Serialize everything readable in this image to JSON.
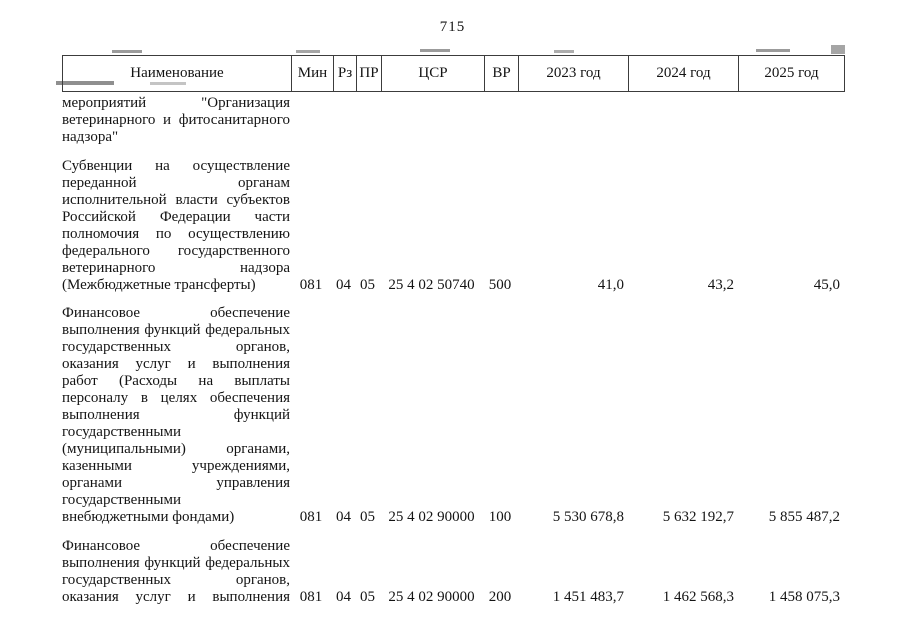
{
  "page": {
    "number": "715"
  },
  "table": {
    "columns": {
      "name": "Наименование",
      "min": "Мин",
      "rz": "Рз",
      "pr": "ПР",
      "csr": "ЦСР",
      "vr": "ВР",
      "y2023": "2023 год",
      "y2024": "2024 год",
      "y2025": "2025 год"
    },
    "rows": [
      {
        "name_lines": [
          "мероприятий \"Организация",
          "ветеринарного и фитосанитарного",
          "надзора\""
        ],
        "min": "",
        "rz": "",
        "pr": "",
        "csr": "",
        "vr": "",
        "y2023": "",
        "y2024": "",
        "y2025": ""
      },
      {
        "name_lines": [
          "Субвенции на осуществление",
          "переданной органам",
          "исполнительной власти субъектов",
          "Российской Федерации части",
          "полномочия по осуществлению",
          "федерального государственного",
          "ветеринарного надзора",
          "(Межбюджетные трансферты)"
        ],
        "min": "081",
        "rz": "04",
        "pr": "05",
        "csr": "25 4 02 50740",
        "vr": "500",
        "y2023": "41,0",
        "y2024": "43,2",
        "y2025": "45,0"
      },
      {
        "name_lines": [
          "Финансовое обеспечение",
          "выполнения функций федеральных",
          "государственных органов,",
          "оказания услуг и выполнения",
          "работ (Расходы на выплаты",
          "персоналу в целях обеспечения",
          "выполнения функций",
          "государственными",
          "(муниципальными) органами,",
          "казенными учреждениями,",
          "органами управления",
          "государственными",
          "внебюджетными фондами)"
        ],
        "min": "081",
        "rz": "04",
        "pr": "05",
        "csr": "25 4 02 90000",
        "vr": "100",
        "y2023": "5 530 678,8",
        "y2024": "5 632 192,7",
        "y2025": "5 855 487,2"
      },
      {
        "name_lines": [
          "Финансовое обеспечение",
          "выполнения функций федеральных",
          "государственных органов,",
          "оказания услуг и выполнения"
        ],
        "justify_all": true,
        "min": "081",
        "rz": "04",
        "pr": "05",
        "csr": "25 4 02 90000",
        "vr": "200",
        "y2023": "1 451 483,7",
        "y2024": "1 462 568,3",
        "y2025": "1 458 075,3"
      }
    ]
  }
}
